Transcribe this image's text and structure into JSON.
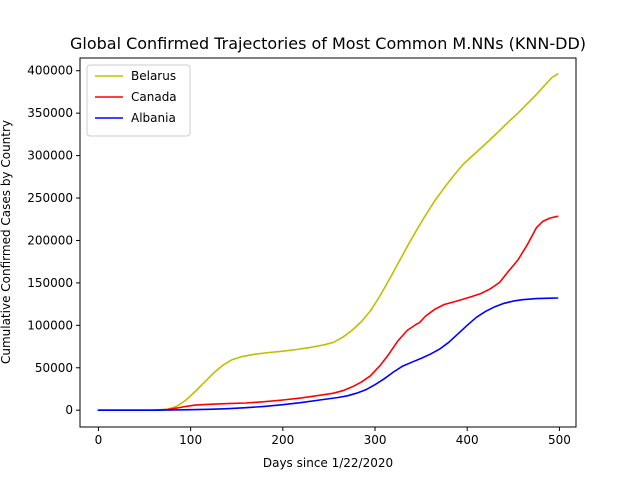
{
  "chart_data": {
    "type": "line",
    "title": "Global Confirmed Trajectories of Most Common M.NNs (KNN-DD)",
    "xlabel": "Days since 1/22/2020",
    "ylabel": "Cumulative Confirmed Cases by Country",
    "xlim": [
      -20,
      518
    ],
    "ylim": [
      -19800,
      415000
    ],
    "x_ticks": [
      0,
      100,
      200,
      300,
      400,
      500
    ],
    "x_tick_labels": [
      "0",
      "100",
      "200",
      "300",
      "400",
      "500"
    ],
    "y_ticks": [
      0,
      50000,
      100000,
      150000,
      200000,
      250000,
      300000,
      350000,
      400000
    ],
    "y_tick_labels": [
      "0",
      "50000",
      "100000",
      "150000",
      "200000",
      "250000",
      "300000",
      "350000",
      "400000"
    ],
    "grid": false,
    "legend_position": "top-left",
    "series": [
      {
        "name": "Belarus",
        "color": "#bfbf00",
        "points": [
          [
            0,
            0
          ],
          [
            60,
            0
          ],
          [
            75,
            1200
          ],
          [
            85,
            4500
          ],
          [
            95,
            12000
          ],
          [
            105,
            22000
          ],
          [
            115,
            33000
          ],
          [
            125,
            44000
          ],
          [
            135,
            53000
          ],
          [
            145,
            59500
          ],
          [
            155,
            63000
          ],
          [
            170,
            66000
          ],
          [
            185,
            68000
          ],
          [
            200,
            69500
          ],
          [
            215,
            71500
          ],
          [
            230,
            74000
          ],
          [
            245,
            77000
          ],
          [
            255,
            80000
          ],
          [
            265,
            86000
          ],
          [
            275,
            94000
          ],
          [
            285,
            104000
          ],
          [
            295,
            117000
          ],
          [
            305,
            134000
          ],
          [
            315,
            153000
          ],
          [
            325,
            173000
          ],
          [
            335,
            193000
          ],
          [
            345,
            212000
          ],
          [
            355,
            230000
          ],
          [
            365,
            247000
          ],
          [
            375,
            262000
          ],
          [
            385,
            276000
          ],
          [
            395,
            289000
          ],
          [
            405,
            299000
          ],
          [
            415,
            309000
          ],
          [
            425,
            319000
          ],
          [
            435,
            329500
          ],
          [
            445,
            340000
          ],
          [
            455,
            350000
          ],
          [
            465,
            361000
          ],
          [
            475,
            372000
          ],
          [
            485,
            384000
          ],
          [
            492,
            392000
          ],
          [
            498,
            396000
          ]
        ]
      },
      {
        "name": "Canada",
        "color": "#ff0000",
        "points": [
          [
            0,
            0
          ],
          [
            60,
            0
          ],
          [
            75,
            800
          ],
          [
            85,
            2500
          ],
          [
            95,
            4500
          ],
          [
            105,
            6000
          ],
          [
            120,
            7000
          ],
          [
            140,
            7800
          ],
          [
            160,
            8500
          ],
          [
            180,
            10000
          ],
          [
            200,
            12000
          ],
          [
            220,
            14500
          ],
          [
            240,
            17500
          ],
          [
            255,
            20000
          ],
          [
            265,
            23000
          ],
          [
            275,
            27500
          ],
          [
            285,
            33000
          ],
          [
            295,
            40500
          ],
          [
            305,
            52000
          ],
          [
            315,
            66000
          ],
          [
            325,
            82000
          ],
          [
            335,
            94000
          ],
          [
            345,
            101500
          ],
          [
            348,
            103000
          ],
          [
            355,
            111000
          ],
          [
            365,
            119000
          ],
          [
            375,
            124500
          ],
          [
            385,
            127500
          ],
          [
            395,
            130500
          ],
          [
            405,
            134000
          ],
          [
            415,
            137500
          ],
          [
            425,
            143000
          ],
          [
            435,
            150500
          ],
          [
            445,
            164000
          ],
          [
            455,
            177000
          ],
          [
            465,
            194500
          ],
          [
            475,
            215000
          ],
          [
            482,
            222500
          ],
          [
            490,
            226500
          ],
          [
            498,
            228500
          ]
        ]
      },
      {
        "name": "Albania",
        "color": "#0000ff",
        "points": [
          [
            0,
            0
          ],
          [
            60,
            0
          ],
          [
            80,
            200
          ],
          [
            100,
            600
          ],
          [
            120,
            1000
          ],
          [
            140,
            1800
          ],
          [
            160,
            3000
          ],
          [
            180,
            4500
          ],
          [
            200,
            6500
          ],
          [
            220,
            9000
          ],
          [
            240,
            12000
          ],
          [
            260,
            15000
          ],
          [
            270,
            17000
          ],
          [
            280,
            20000
          ],
          [
            290,
            24000
          ],
          [
            300,
            30000
          ],
          [
            310,
            37000
          ],
          [
            320,
            45000
          ],
          [
            330,
            52000
          ],
          [
            340,
            56500
          ],
          [
            350,
            61000
          ],
          [
            360,
            66000
          ],
          [
            370,
            72000
          ],
          [
            380,
            80000
          ],
          [
            390,
            90000
          ],
          [
            400,
            100000
          ],
          [
            410,
            109500
          ],
          [
            420,
            116500
          ],
          [
            430,
            122000
          ],
          [
            440,
            126000
          ],
          [
            450,
            128500
          ],
          [
            460,
            130200
          ],
          [
            475,
            131500
          ],
          [
            490,
            132000
          ],
          [
            498,
            132200
          ]
        ]
      }
    ]
  }
}
